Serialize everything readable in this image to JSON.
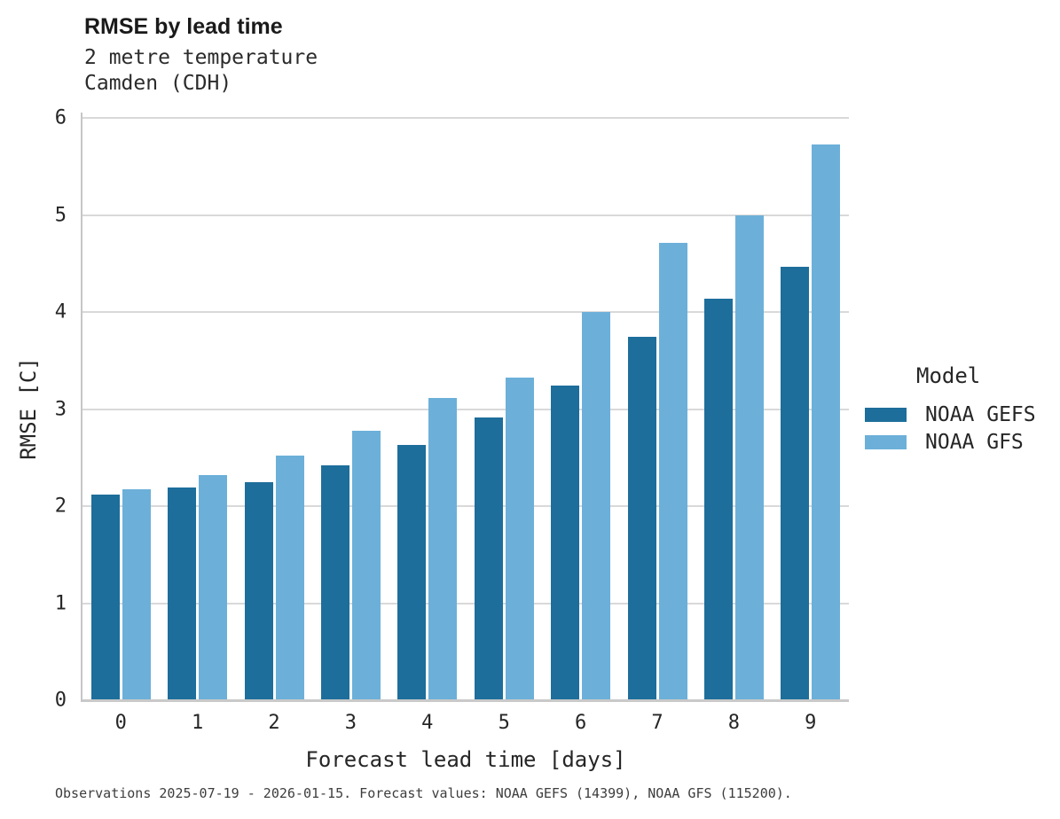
{
  "header": {
    "title": "RMSE by lead time",
    "subtitle_line1": "2 metre temperature",
    "subtitle_line2": "Camden (CDH)"
  },
  "chart_data": {
    "type": "bar",
    "title": "RMSE by lead time",
    "subtitle": [
      "2 metre temperature",
      "Camden (CDH)"
    ],
    "xlabel": "Forecast lead time [days]",
    "ylabel": "RMSE [C]",
    "ylim": [
      0,
      6
    ],
    "yticks": [
      0,
      1,
      2,
      3,
      4,
      5,
      6
    ],
    "categories": [
      "0",
      "1",
      "2",
      "3",
      "4",
      "5",
      "6",
      "7",
      "8",
      "9"
    ],
    "series": [
      {
        "name": "NOAA GEFS",
        "color": "#1d6e9b",
        "values": [
          2.12,
          2.19,
          2.25,
          2.42,
          2.63,
          2.91,
          3.24,
          3.74,
          4.14,
          4.47
        ]
      },
      {
        "name": "NOAA GFS",
        "color": "#6cb0d9",
        "values": [
          2.17,
          2.32,
          2.52,
          2.78,
          3.11,
          3.32,
          4.0,
          4.71,
          5.0,
          5.73
        ]
      }
    ],
    "legend": {
      "title": "Model",
      "position": "right"
    },
    "grid": "horizontal",
    "grid_color": "#d9d9d9",
    "axis_color": "#c9c9c9"
  },
  "footer": {
    "caption": "Observations 2025-07-19 - 2026-01-15. Forecast values: NOAA GEFS (14399), NOAA GFS (115200)."
  }
}
